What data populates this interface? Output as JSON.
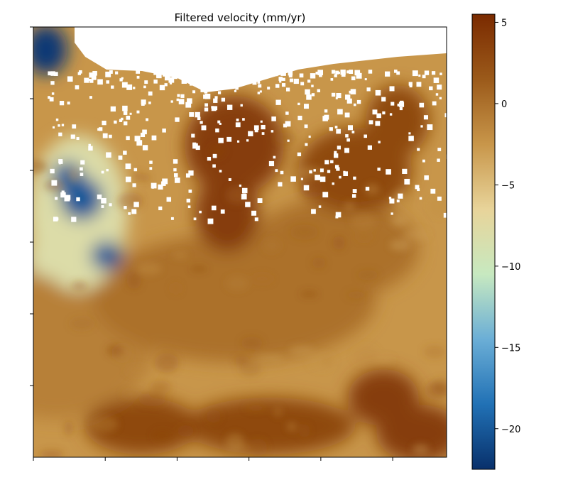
{
  "chart_data": {
    "type": "heatmap",
    "title": "Filtered velocity (mm/yr)",
    "xlabel": "",
    "ylabel": "",
    "x_tick_labels": [
      "",
      "",
      "",
      "",
      "",
      ""
    ],
    "y_tick_labels": [
      "",
      "",
      "",
      "",
      "",
      ""
    ],
    "grid": false,
    "colormap": "RdYlBu-like (blue to beige to brown)",
    "colorbar": {
      "vmin": -22.5,
      "vmax": 5.5,
      "ticks": [
        5,
        0,
        -5,
        -10,
        -15,
        -20
      ],
      "tick_labels": [
        "5",
        "0",
        "−5",
        "−10",
        "−15",
        "−20"
      ],
      "colors": [
        "#08306b",
        "#2171b5",
        "#6baed6",
        "#c7e9c0",
        "#e8d49a",
        "#c8964a",
        "#9b5a1a",
        "#7a2a00"
      ]
    },
    "field_summary": [
      {
        "region": "upper-left coastal area",
        "value": -22
      },
      {
        "region": "left-centre basin",
        "value": -20
      },
      {
        "region": "left margin",
        "value": -8
      },
      {
        "region": "central band",
        "value": 0
      },
      {
        "region": "upper-centre",
        "value": 4
      },
      {
        "region": "upper-right",
        "value": 3
      },
      {
        "region": "lower-centre",
        "value": 3
      },
      {
        "region": "lower-right",
        "value": 4
      },
      {
        "region": "lower-left",
        "value": -1
      }
    ],
    "no_data": "white (masked) pixels concentrated along the top edge"
  }
}
